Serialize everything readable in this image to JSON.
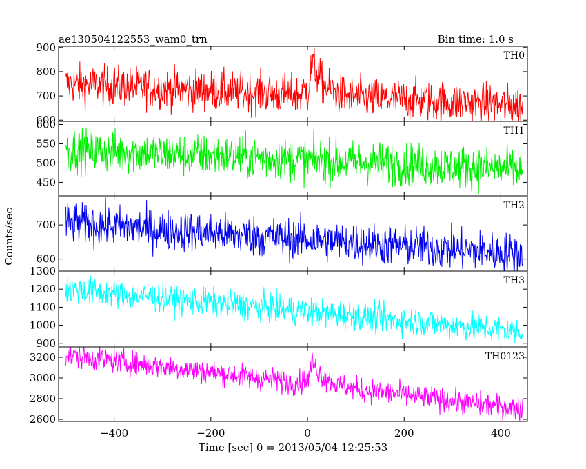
{
  "chart_data": {
    "type": "line",
    "title": "ae130504122553_wam0_trn",
    "bin_time_label": "Bin time: 1.0 s",
    "xlabel": "Time [sec] 0 = 2013/05/04 12:25:53",
    "ylabel": "Counts/sec",
    "xlim": [
      -515,
      455
    ],
    "x_ticks": [
      -400,
      -200,
      0,
      200,
      400
    ],
    "x_tick_labels": [
      "−400",
      "−200",
      "0",
      "200",
      "400"
    ],
    "x_range": [
      -500,
      445
    ],
    "series": [
      {
        "name": "TH0",
        "color": "#ff0000",
        "ylim": [
          595,
          905
        ],
        "yticks": [
          600,
          700,
          800,
          900
        ],
        "ytick_labels": [
          "600",
          "700",
          "800",
          "900"
        ],
        "trend_start": 750,
        "trend_end": 660,
        "noise": 42,
        "burst": {
          "x0": 0,
          "rise": 10,
          "peak_excess": 140,
          "decay": 22
        },
        "spike": {
          "x": -400,
          "excess": 130
        }
      },
      {
        "name": "TH1",
        "color": "#00ee00",
        "ylim": [
          415,
          608
        ],
        "yticks": [
          450,
          500,
          550,
          600
        ],
        "ytick_labels": [
          "450",
          "500",
          "550",
          "600"
        ],
        "trend_start": 535,
        "trend_end": 483,
        "noise": 28
      },
      {
        "name": "TH2",
        "color": "#0000ee",
        "ylim": [
          565,
          785
        ],
        "yticks": [
          600,
          700
        ],
        "ytick_labels": [
          "600",
          "700"
        ],
        "trend_start": 705,
        "trend_end": 615,
        "noise": 30
      },
      {
        "name": "TH3",
        "color": "#00ffff",
        "ylim": [
          880,
          1300
        ],
        "yticks": [
          900,
          1000,
          1100,
          1200,
          1300
        ],
        "ytick_labels": [
          "900",
          "1000",
          "1100",
          "1200",
          "1300"
        ],
        "trend_start": 1200,
        "trend_end": 965,
        "noise": 40
      },
      {
        "name": "TH0123",
        "color": "#ff00ff",
        "ylim": [
          2580,
          3300
        ],
        "yticks": [
          2600,
          2800,
          3000,
          3200
        ],
        "ytick_labels": [
          "2600",
          "2800",
          "3000",
          "3200"
        ],
        "trend_start": 3220,
        "trend_end": 2700,
        "noise": 58,
        "burst": {
          "x0": 0,
          "rise": 10,
          "peak_excess": 220,
          "decay": 25
        }
      }
    ]
  }
}
